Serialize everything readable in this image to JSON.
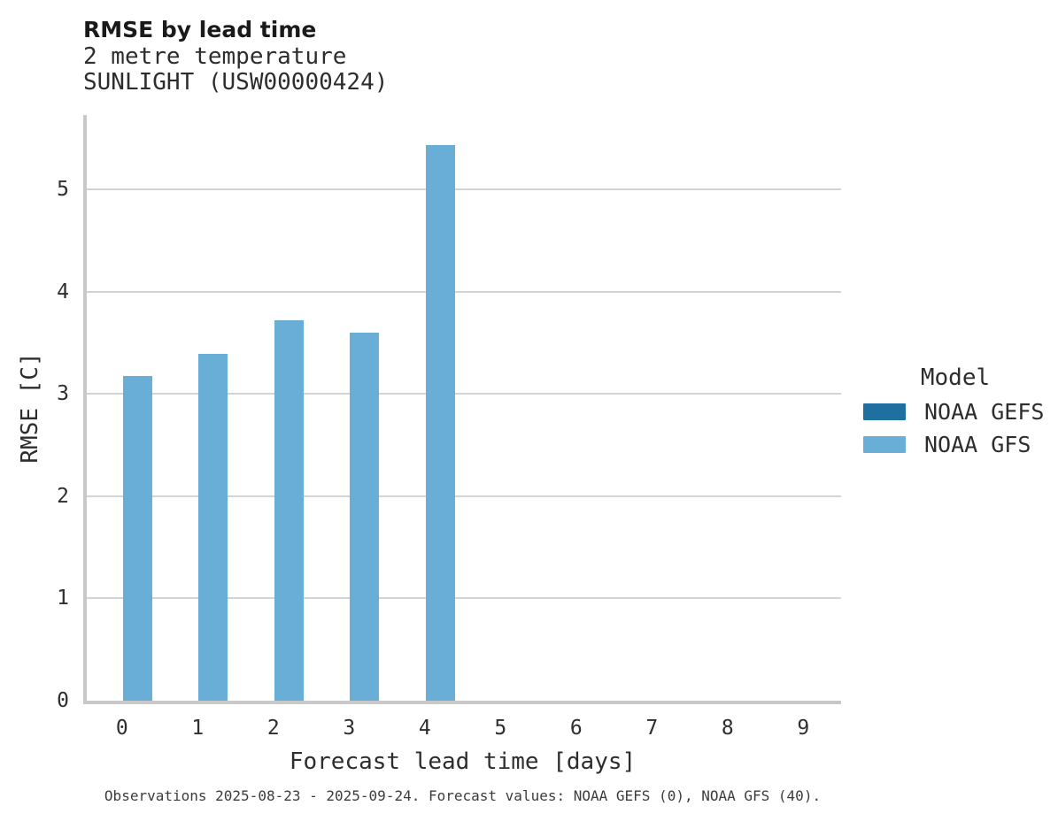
{
  "header": {
    "title": "RMSE by lead time",
    "subtitle1": "2 metre temperature",
    "subtitle2": "SUNLIGHT (USW00000424)"
  },
  "chart_data": {
    "type": "bar",
    "title": "RMSE by lead time",
    "subtitle": [
      "2 metre temperature",
      "SUNLIGHT (USW00000424)"
    ],
    "xlabel": "Forecast lead time [days]",
    "ylabel": "RMSE [C]",
    "categories": [
      0,
      1,
      2,
      3,
      4,
      5,
      6,
      7,
      8,
      9
    ],
    "x_tick_labels": [
      "0",
      "1",
      "2",
      "3",
      "4",
      "5",
      "6",
      "7",
      "8",
      "9"
    ],
    "y_tick_values": [
      0,
      1,
      2,
      3,
      4,
      5
    ],
    "ylim": [
      0,
      5.73
    ],
    "grid": "horizontal",
    "legend_position": "right",
    "series": [
      {
        "name": "NOAA GEFS",
        "color": "#1f6f9f",
        "values": [
          null,
          null,
          null,
          null,
          null,
          null,
          null,
          null,
          null,
          null
        ]
      },
      {
        "name": "NOAA GFS",
        "color": "#69aed6",
        "values": [
          3.18,
          3.39,
          3.72,
          3.6,
          5.44,
          null,
          null,
          null,
          null,
          null
        ]
      }
    ]
  },
  "legend": {
    "title": "Model",
    "entries": [
      {
        "label": "NOAA GEFS",
        "color": "#1f6f9f"
      },
      {
        "label": "NOAA GFS",
        "color": "#69aed6"
      }
    ]
  },
  "footer": {
    "caption": "Observations 2025-08-23 - 2025-09-24. Forecast values: NOAA GEFS (0), NOAA GFS (40)."
  },
  "colors": {
    "bar_noaa_gefs": "#1f6f9f",
    "bar_noaa_gfs": "#69aed6",
    "gridline": "#d4d4d4",
    "axis_line": "#c8c8c8",
    "text": "#2d2d2d"
  }
}
